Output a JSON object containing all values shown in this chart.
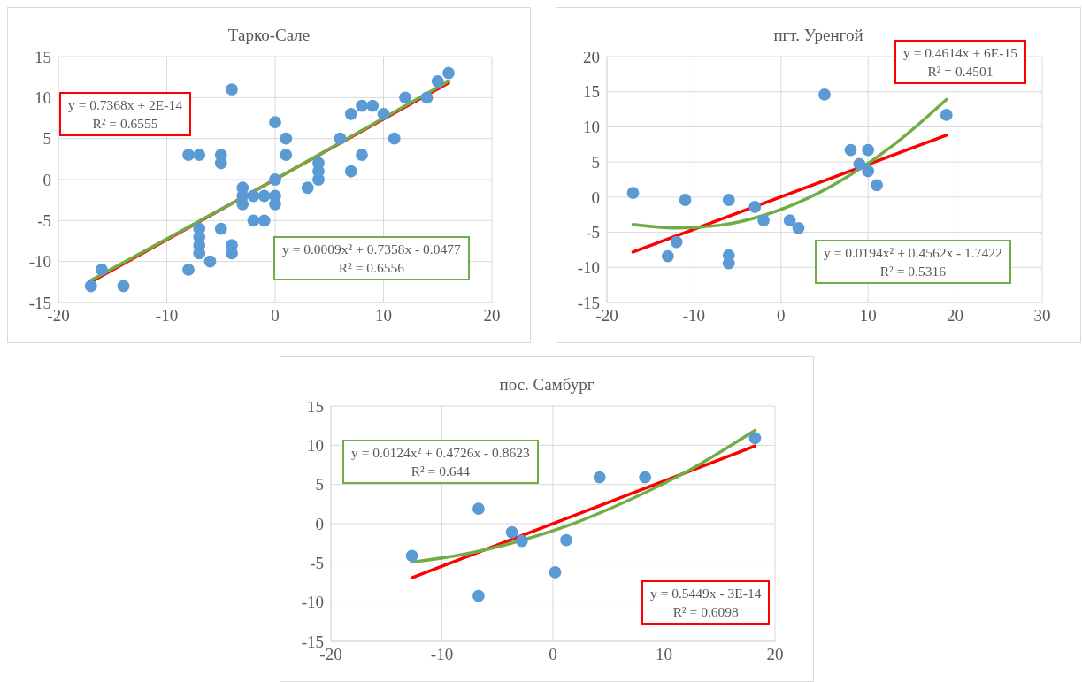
{
  "chart_data": [
    {
      "type": "scatter",
      "title": "Тарко-Сале",
      "xlim": [
        -20,
        20
      ],
      "xticks": [
        -20,
        -10,
        0,
        10,
        20
      ],
      "ylim": [
        -15,
        15
      ],
      "yticks": [
        -15,
        -10,
        -5,
        0,
        5,
        10,
        15
      ],
      "grid": true,
      "marker": "circle",
      "annotations": [
        "y = 0.7368x + 2E-14\nR² = 0.6555",
        "y = 0.0009x² + 0.7358x - 0.0477\nR² = 0.6556"
      ],
      "series": [
        {
          "color": "#5b9bd5",
          "x": [
            -17,
            -16,
            -14,
            -4,
            -8,
            -7,
            -5,
            -5,
            -8,
            -7,
            -7,
            -7,
            -7,
            -6,
            -5,
            -4,
            -4,
            -3,
            -3,
            -3,
            -2,
            -1,
            -2,
            -1,
            0,
            0,
            0,
            0,
            1,
            1,
            3,
            4,
            4,
            4,
            6,
            7,
            7,
            8,
            8,
            9,
            10,
            11,
            12,
            14,
            15,
            16
          ],
          "values": [
            -13,
            -11,
            -13,
            11,
            3,
            3,
            3,
            2,
            -11,
            -6,
            -7,
            -8,
            -9,
            -10,
            -6,
            -8,
            -9,
            -1,
            -2,
            -3,
            -2,
            -2,
            -5,
            -5,
            0,
            -2,
            -3,
            7,
            5,
            3,
            -1,
            2,
            1,
            0,
            5,
            1,
            8,
            9,
            3,
            9,
            8,
            5,
            10,
            10,
            12,
            13
          ]
        },
        {
          "type": "line",
          "marker": "none",
          "color": "#ff0000",
          "x": [
            -17,
            16
          ],
          "values": [
            -12.5,
            11.8
          ]
        },
        {
          "type": "line",
          "marker": "none",
          "color": "#70ad47",
          "x": [
            -17,
            0,
            16
          ],
          "values": [
            -12.3,
            0,
            12
          ]
        }
      ]
    },
    {
      "type": "scatter",
      "title": "пгт.  Уренгой",
      "xlim": [
        -20,
        30
      ],
      "xticks": [
        -20,
        -10,
        0,
        10,
        20,
        30
      ],
      "ylim": [
        -15,
        20
      ],
      "yticks": [
        -15,
        -10,
        -5,
        0,
        5,
        10,
        15,
        20
      ],
      "grid": true,
      "marker": "circle",
      "annotations": [
        "y = 0.4614x + 6E-15\nR² = 0.4501",
        "y = 0.0194x² + 0.4562x - 1.7422\nR² = 0.5316"
      ],
      "series": [
        {
          "color": "#5b9bd5",
          "x": [
            -17,
            -13,
            -12,
            -11,
            -6,
            -6,
            -6,
            -3,
            -2,
            1,
            2,
            5,
            8,
            9,
            10,
            10,
            11,
            19
          ],
          "values": [
            0.6,
            -8.4,
            -6.4,
            -0.4,
            -0.4,
            -8.3,
            -9.4,
            -1.4,
            -3.3,
            -3.3,
            -4.4,
            14.6,
            6.7,
            4.7,
            6.7,
            3.7,
            1.7,
            11.7
          ]
        },
        {
          "type": "line",
          "marker": "none",
          "color": "#ff0000",
          "x": [
            -17,
            19
          ],
          "values": [
            -7.8,
            8.8
          ]
        },
        {
          "type": "line",
          "marker": "none",
          "color": "#70ad47",
          "x": [
            -17,
            -12,
            -7,
            -2,
            3,
            8,
            13,
            19
          ],
          "values": [
            -3.9,
            -4.4,
            -4,
            -2.6,
            -0.2,
            3.2,
            7.5,
            13.9
          ]
        }
      ]
    },
    {
      "type": "scatter",
      "title": "пос. Самбург",
      "xlim": [
        -20,
        20
      ],
      "xticks": [
        -20,
        -10,
        0,
        10,
        20
      ],
      "ylim": [
        -15,
        15
      ],
      "yticks": [
        -15,
        -10,
        -5,
        0,
        5,
        10,
        15
      ],
      "grid": true,
      "marker": "circle",
      "annotations": [
        "y = 0.5449x - 3E-14\nR² = 0.6098",
        "y = 0.0124x² + 0.4726x - 0.8623\nR² = 0.644"
      ],
      "series": [
        {
          "color": "#5b9bd5",
          "x": [
            -12.7,
            -6.7,
            -6.7,
            -3.7,
            -2.8,
            0.2,
            1.2,
            4.2,
            8.3,
            18.2
          ],
          "values": [
            -4.1,
            1.9,
            -9.2,
            -1.1,
            -2.2,
            -6.2,
            -2.1,
            5.9,
            5.9,
            10.9
          ]
        },
        {
          "type": "line",
          "marker": "none",
          "color": "#ff0000",
          "x": [
            -12.7,
            18.2
          ],
          "values": [
            -6.9,
            9.9
          ]
        },
        {
          "type": "line",
          "marker": "none",
          "color": "#70ad47",
          "x": [
            -12.7,
            -8,
            -3,
            2,
            7,
            12,
            18.2
          ],
          "values": [
            -4.9,
            -3.9,
            -2.2,
            0.1,
            3.1,
            6.6,
            11.9
          ]
        }
      ]
    }
  ]
}
